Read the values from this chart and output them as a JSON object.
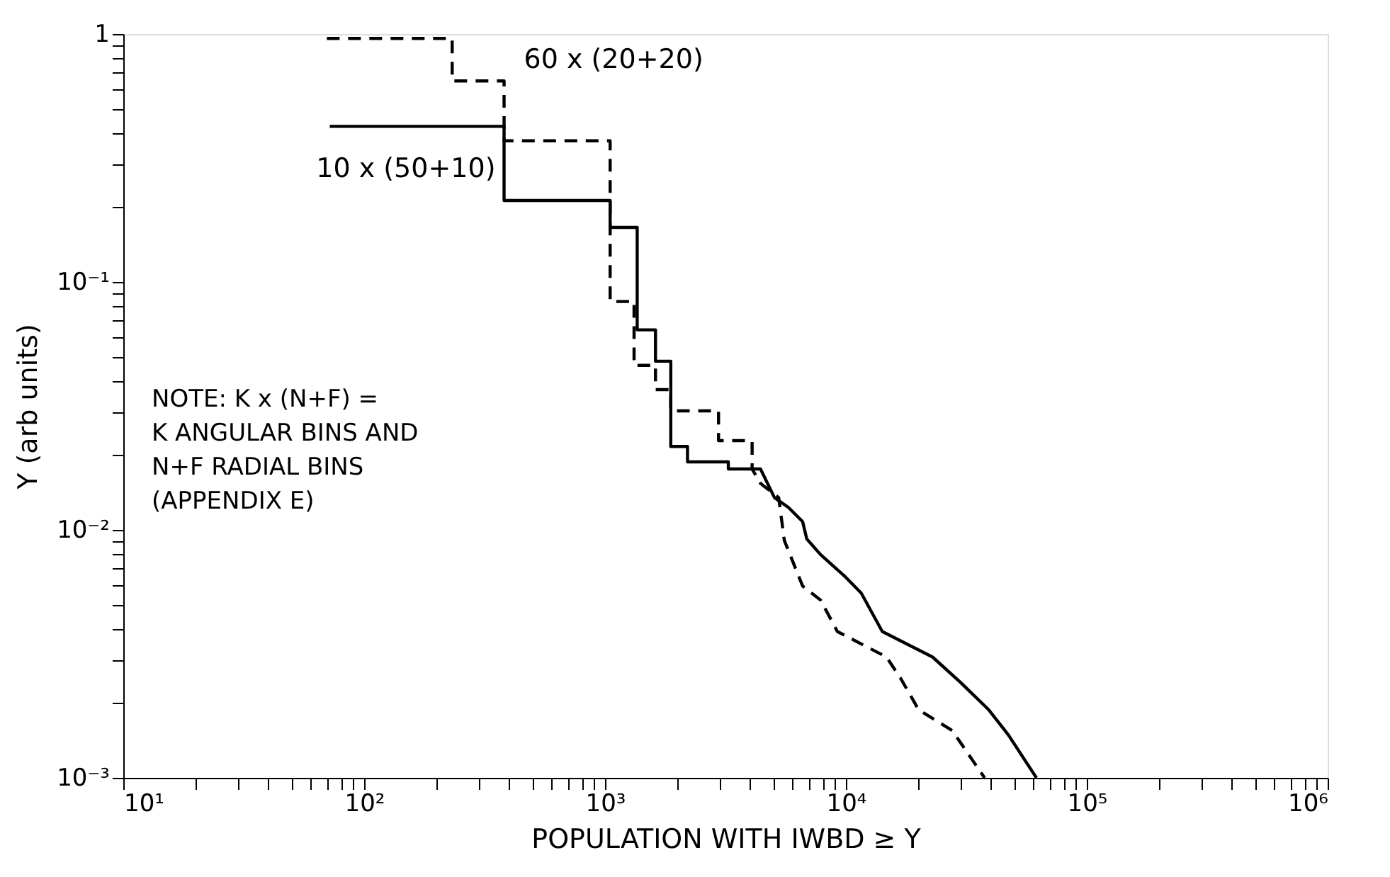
{
  "chart_data": {
    "type": "line",
    "log": "xy",
    "grid": false,
    "marker": "none",
    "xlabel": "POPULATION WITH IWBD ≥ Y",
    "ylabel": "Y (arb units)",
    "xlim": [
      10,
      1000000
    ],
    "ylim": [
      0.001,
      1
    ],
    "xticks": [
      {
        "value": 10,
        "label": "10¹"
      },
      {
        "value": 20,
        "label": null
      },
      {
        "value": 30,
        "label": null
      },
      {
        "value": 40,
        "label": null
      },
      {
        "value": 50,
        "label": null
      },
      {
        "value": 60,
        "label": null
      },
      {
        "value": 70,
        "label": null
      },
      {
        "value": 80,
        "label": null
      },
      {
        "value": 90,
        "label": null
      },
      {
        "value": 100,
        "label": "10²"
      },
      {
        "value": 200,
        "label": null
      },
      {
        "value": 300,
        "label": null
      },
      {
        "value": 400,
        "label": null
      },
      {
        "value": 500,
        "label": null
      },
      {
        "value": 600,
        "label": null
      },
      {
        "value": 700,
        "label": null
      },
      {
        "value": 800,
        "label": null
      },
      {
        "value": 900,
        "label": null
      },
      {
        "value": 1000,
        "label": "10³"
      },
      {
        "value": 2000,
        "label": null
      },
      {
        "value": 3000,
        "label": null
      },
      {
        "value": 4000,
        "label": null
      },
      {
        "value": 5000,
        "label": null
      },
      {
        "value": 6000,
        "label": null
      },
      {
        "value": 7000,
        "label": null
      },
      {
        "value": 8000,
        "label": null
      },
      {
        "value": 9000,
        "label": null
      },
      {
        "value": 10000,
        "label": "10⁴"
      },
      {
        "value": 20000,
        "label": null
      },
      {
        "value": 30000,
        "label": null
      },
      {
        "value": 40000,
        "label": null
      },
      {
        "value": 50000,
        "label": null
      },
      {
        "value": 60000,
        "label": null
      },
      {
        "value": 70000,
        "label": null
      },
      {
        "value": 80000,
        "label": null
      },
      {
        "value": 90000,
        "label": null
      },
      {
        "value": 100000,
        "label": "10⁵"
      },
      {
        "value": 200000,
        "label": null
      },
      {
        "value": 300000,
        "label": null
      },
      {
        "value": 400000,
        "label": null
      },
      {
        "value": 500000,
        "label": null
      },
      {
        "value": 600000,
        "label": null
      },
      {
        "value": 700000,
        "label": null
      },
      {
        "value": 800000,
        "label": null
      },
      {
        "value": 900000,
        "label": null
      },
      {
        "value": 1000000,
        "label": "10⁶"
      }
    ],
    "yticks": [
      {
        "value": 0.001,
        "label": "10⁻³"
      },
      {
        "value": 0.002,
        "label": null
      },
      {
        "value": 0.003,
        "label": null
      },
      {
        "value": 0.004,
        "label": null
      },
      {
        "value": 0.005,
        "label": null
      },
      {
        "value": 0.006,
        "label": null
      },
      {
        "value": 0.007,
        "label": null
      },
      {
        "value": 0.008,
        "label": null
      },
      {
        "value": 0.009,
        "label": null
      },
      {
        "value": 0.01,
        "label": "10⁻²"
      },
      {
        "value": 0.02,
        "label": null
      },
      {
        "value": 0.03,
        "label": null
      },
      {
        "value": 0.04,
        "label": null
      },
      {
        "value": 0.05,
        "label": null
      },
      {
        "value": 0.06,
        "label": null
      },
      {
        "value": 0.07,
        "label": null
      },
      {
        "value": 0.08,
        "label": null
      },
      {
        "value": 0.09,
        "label": null
      },
      {
        "value": 0.1,
        "label": "10⁻¹"
      },
      {
        "value": 0.2,
        "label": null
      },
      {
        "value": 0.3,
        "label": null
      },
      {
        "value": 0.4,
        "label": null
      },
      {
        "value": 0.5,
        "label": null
      },
      {
        "value": 0.6,
        "label": null
      },
      {
        "value": 0.7,
        "label": null
      },
      {
        "value": 0.8,
        "label": null
      },
      {
        "value": 0.9,
        "label": null
      },
      {
        "value": 1,
        "label": "1"
      }
    ],
    "series": [
      {
        "name": "10 x (50+10)",
        "color": "#000000",
        "line_style": "solid",
        "x": [
          72,
          381,
          381,
          1050,
          1050,
          1360,
          1360,
          1620,
          1620,
          1875,
          1875,
          2200,
          2200,
          3250,
          3250,
          4420,
          5050,
          5780,
          6610,
          6880,
          7850,
          9860,
          11580,
          14160,
          22900,
          29980,
          39190,
          47240,
          61800
        ],
        "values": [
          0.424,
          0.424,
          0.213,
          0.213,
          0.166,
          0.166,
          0.0641,
          0.0641,
          0.0479,
          0.0479,
          0.0217,
          0.0217,
          0.0188,
          0.0188,
          0.0176,
          0.0176,
          0.0135,
          0.0123,
          0.0108,
          0.00919,
          0.00795,
          0.00652,
          0.00556,
          0.00389,
          0.00307,
          0.00242,
          0.00188,
          0.00149,
          0.001
        ]
      },
      {
        "name": "60 x (20+20)",
        "color": "#000000",
        "line_style": "dashed",
        "x": [
          70,
          232,
          232,
          381,
          381,
          1050,
          1050,
          1320,
          1320,
          1620,
          1620,
          1875,
          1875,
          2960,
          2960,
          4080,
          4080,
          4420,
          5260,
          5550,
          6610,
          7850,
          9220,
          14750,
          16870,
          20060,
          27650,
          37640
        ],
        "values": [
          0.96,
          0.96,
          0.647,
          0.647,
          0.371,
          0.371,
          0.0834,
          0.0834,
          0.0461,
          0.0461,
          0.0368,
          0.0368,
          0.0302,
          0.0302,
          0.0229,
          0.0229,
          0.0176,
          0.0154,
          0.0135,
          0.00907,
          0.00594,
          0.00521,
          0.00389,
          0.00307,
          0.00252,
          0.00188,
          0.00155,
          0.001
        ]
      }
    ],
    "annotations": [
      "NOTE: K x (N+F) =\nK ANGULAR BINS AND\nN+F RADIAL BINS\n(APPENDIX E)"
    ]
  }
}
